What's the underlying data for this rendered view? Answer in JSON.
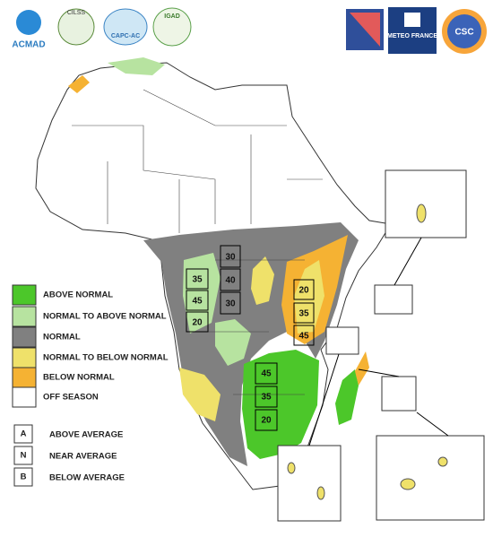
{
  "logos": {
    "left": [
      "ACMAD",
      "CILSS",
      "CAPC-AC",
      "IGAD"
    ],
    "right": [
      "METEO FRANCE",
      "CSC"
    ]
  },
  "legend": {
    "items": [
      "ABOVE NORMAL",
      "NORMAL TO ABOVE NORMAL",
      "NORMAL",
      "NORMAL TO BELOW NORMAL",
      "BELOW NORMAL",
      "OFF SEASON"
    ]
  },
  "probability_legend": {
    "items": [
      {
        "key": "A",
        "label": "ABOVE AVERAGE"
      },
      {
        "key": "N",
        "label": "NEAR AVERAGE"
      },
      {
        "key": "B",
        "label": "BELOW AVERAGE"
      }
    ]
  },
  "map": {
    "boxes": [
      35,
      45,
      20,
      30,
      40,
      30,
      20,
      35,
      45,
      45,
      35,
      20
    ]
  }
}
